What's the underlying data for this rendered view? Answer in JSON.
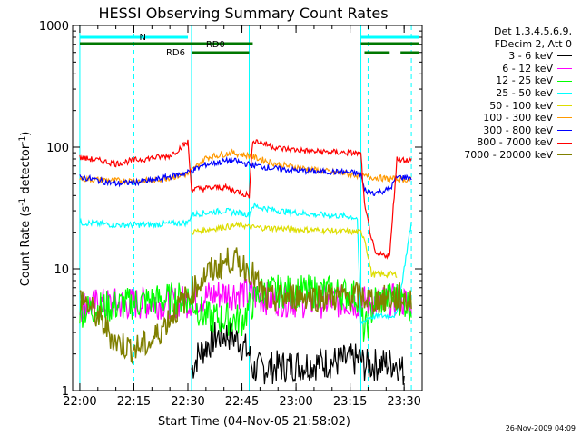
{
  "chart_data": {
    "type": "line",
    "title": "HESSI Observing Summary Count Rates",
    "xlabel": "Start Time (04-Nov-05 21:58:02)",
    "ylabel_main": "Count Rate (s",
    "ylabel_sup1": "-1",
    "ylabel_mid": " detector",
    "ylabel_sup2": "-1",
    "ylabel_end": ")",
    "yscale": "log",
    "xlim": [
      "21:58",
      "23:35"
    ],
    "ylim": [
      1,
      1000
    ],
    "x_ticks": [
      "22:00",
      "22:15",
      "22:30",
      "22:45",
      "23:00",
      "23:15",
      "23:30"
    ],
    "y_ticks": [
      "1",
      "10",
      "100",
      "1000"
    ],
    "legend_header": [
      "Det 1,3,4,5,6,9,",
      "FDecim 2, Att 0"
    ],
    "legend_placement": "right",
    "series": [
      {
        "name": "3 - 6 keV",
        "color": "#000000",
        "x": [
          "22:31",
          "22:33",
          "22:35",
          "22:38",
          "22:41",
          "22:44",
          "22:47",
          "22:48",
          "23:18",
          "23:19",
          "23:28",
          "23:30"
        ],
        "values": [
          1.5,
          2.0,
          2.3,
          2.8,
          2.9,
          2.6,
          2.0,
          1.5,
          1.8,
          1.6,
          1.7,
          1.4
        ]
      },
      {
        "name": "6 - 12 keV",
        "color": "#ff00ff",
        "x": [
          "22:00",
          "22:15",
          "22:30",
          "22:38",
          "22:45",
          "22:50",
          "23:00",
          "23:10",
          "23:17",
          "23:28",
          "23:32"
        ],
        "values": [
          5.0,
          5.2,
          5.4,
          6.2,
          6.4,
          5.8,
          5.4,
          5.4,
          5.3,
          5.5,
          5.3
        ]
      },
      {
        "name": "12 - 25 keV",
        "color": "#00ff00",
        "x": [
          "22:00",
          "22:10",
          "22:20",
          "22:30",
          "22:35",
          "22:45",
          "22:50",
          "23:00",
          "23:10",
          "23:17",
          "23:19",
          "23:22",
          "23:28",
          "23:32"
        ],
        "values": [
          4.5,
          5.0,
          5.5,
          5.8,
          4.0,
          3.8,
          6.5,
          6.5,
          6.5,
          6.0,
          3.0,
          5.5,
          5.8,
          5.0
        ]
      },
      {
        "name": "25 - 50 keV",
        "color": "#00ffff",
        "x": [
          "22:00",
          "22:10",
          "22:20",
          "22:30",
          "22:31",
          "22:40",
          "22:47",
          "22:48",
          "22:55",
          "23:05",
          "23:15",
          "23:17",
          "23:18",
          "23:20",
          "23:28",
          "23:32"
        ],
        "values": [
          24,
          23,
          23,
          24,
          28,
          30,
          28,
          33,
          30,
          28,
          27,
          26,
          3.5,
          4.0,
          4.2,
          24
        ]
      },
      {
        "name": "50 - 100 keV",
        "color": "#dddd00",
        "x": [
          "22:31",
          "22:35",
          "22:40",
          "22:45",
          "22:47",
          "23:18",
          "23:19",
          "23:21",
          "23:28"
        ],
        "values": [
          20,
          21,
          22,
          23,
          22,
          20,
          18,
          9,
          9
        ]
      },
      {
        "name": "100 - 300 keV",
        "color": "#ff9900",
        "x": [
          "22:00",
          "22:10",
          "22:20",
          "22:30",
          "22:35",
          "22:42",
          "22:47",
          "22:55",
          "23:05",
          "23:15",
          "23:18",
          "23:25",
          "23:32"
        ],
        "values": [
          55,
          53,
          53,
          60,
          82,
          90,
          85,
          72,
          65,
          60,
          58,
          55,
          54
        ]
      },
      {
        "name": "300 - 800 keV",
        "color": "#0000ff",
        "x": [
          "22:00",
          "22:10",
          "22:20",
          "22:30",
          "22:35",
          "22:42",
          "22:47",
          "22:55",
          "23:05",
          "23:15",
          "23:18",
          "23:19",
          "23:22",
          "23:26",
          "23:28",
          "23:32"
        ],
        "values": [
          57,
          50,
          53,
          62,
          72,
          78,
          72,
          66,
          63,
          62,
          60,
          44,
          42,
          45,
          57,
          56
        ]
      },
      {
        "name": "800 - 7000 keV",
        "color": "#ff0000",
        "x": [
          "22:00",
          "22:05",
          "22:10",
          "22:15",
          "22:25",
          "22:30",
          "22:31",
          "22:40",
          "22:47",
          "22:48",
          "22:55",
          "23:05",
          "23:15",
          "23:18",
          "23:19",
          "23:22",
          "23:26",
          "23:28",
          "23:32"
        ],
        "values": [
          82,
          78,
          73,
          78,
          85,
          110,
          45,
          47,
          40,
          115,
          98,
          92,
          90,
          88,
          33,
          13,
          13,
          80,
          78
        ]
      },
      {
        "name": "7000 - 20000 keV",
        "color": "#808000",
        "x": [
          "22:00",
          "22:05",
          "22:10",
          "22:15",
          "22:20",
          "22:25",
          "22:30",
          "22:35",
          "22:42",
          "22:47",
          "22:52",
          "23:00",
          "23:10",
          "23:17",
          "23:22",
          "23:28",
          "23:32"
        ],
        "values": [
          6,
          4,
          2.5,
          2.2,
          2.5,
          4,
          6,
          9,
          12,
          10,
          5.5,
          6,
          5.8,
          6,
          5.5,
          5.8,
          5.5
        ]
      }
    ],
    "bars": [
      {
        "label": "N",
        "color": "#00ffff",
        "segments": [
          [
            "22:00",
            "22:15"
          ],
          [
            "22:15",
            "22:30"
          ],
          [
            "23:18",
            "23:34"
          ]
        ]
      },
      {
        "label": "RD0",
        "color": "#007700",
        "segments": [
          [
            "22:00",
            "22:48"
          ],
          [
            "23:18",
            "23:34"
          ]
        ]
      },
      {
        "label": "RD6",
        "color": "#007700",
        "segments": [
          [
            "22:31",
            "22:47"
          ],
          [
            "23:19",
            "23:26"
          ],
          [
            "23:29",
            "23:34"
          ]
        ]
      }
    ],
    "vlines_solid": [
      "22:00",
      "22:31",
      "22:47",
      "23:18"
    ],
    "vlines_dashed": [
      "22:15",
      "23:20",
      "23:32"
    ],
    "grid": false
  },
  "timestamp": "26-Nov-2009 04:09"
}
